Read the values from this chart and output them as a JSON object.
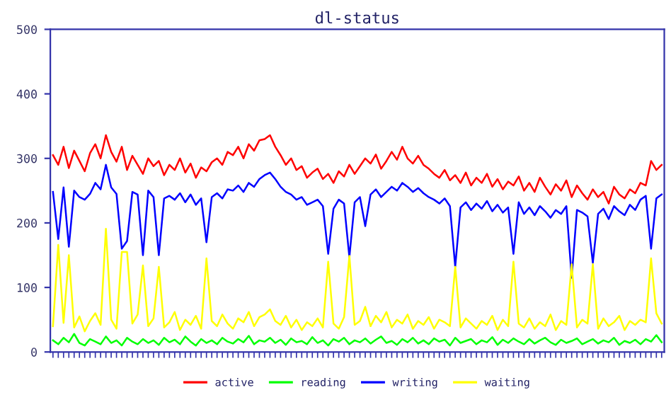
{
  "chart_data": {
    "type": "line",
    "title": "dl-status",
    "categories": [
      null,
      null,
      null,
      null,
      null,
      null,
      null,
      null,
      null,
      null,
      null,
      null,
      null,
      null,
      null,
      null,
      null,
      null,
      null,
      null,
      null,
      null,
      null,
      null,
      null,
      null,
      null,
      null,
      null,
      null,
      null,
      null,
      null,
      null,
      null,
      null,
      null,
      null,
      null,
      null,
      null,
      null,
      null,
      null,
      null,
      null,
      null,
      null,
      null,
      null,
      null,
      null,
      null,
      null,
      null,
      null,
      null,
      null,
      null,
      null,
      null,
      null,
      null,
      null,
      null,
      null,
      null,
      null,
      null,
      null,
      null,
      null,
      null,
      null,
      null,
      null,
      null,
      null,
      null,
      null,
      null,
      null,
      null,
      null,
      null,
      null,
      null,
      null,
      null,
      null,
      null,
      null,
      null,
      null,
      null,
      null,
      null,
      null,
      null,
      null,
      null,
      null,
      null,
      null,
      null,
      null,
      null,
      null,
      null,
      null,
      null,
      null,
      null,
      null,
      null,
      null
    ],
    "series": [
      {
        "name": "active",
        "color": "#ff0000",
        "values": [
          305,
          290,
          318,
          285,
          312,
          296,
          280,
          308,
          322,
          300,
          336,
          310,
          295,
          318,
          282,
          304,
          290,
          276,
          300,
          288,
          296,
          274,
          290,
          282,
          300,
          278,
          292,
          270,
          286,
          280,
          294,
          300,
          290,
          310,
          305,
          318,
          300,
          322,
          312,
          328,
          330,
          336,
          318,
          305,
          290,
          300,
          282,
          288,
          270,
          278,
          284,
          268,
          276,
          262,
          280,
          272,
          290,
          276,
          288,
          300,
          292,
          306,
          284,
          296,
          310,
          298,
          318,
          300,
          292,
          304,
          290,
          284,
          276,
          270,
          282,
          266,
          274,
          262,
          278,
          258,
          270,
          262,
          276,
          256,
          268,
          252,
          264,
          258,
          272,
          250,
          262,
          248,
          270,
          256,
          244,
          260,
          250,
          266,
          240,
          258,
          246,
          236,
          252,
          240,
          248,
          230,
          256,
          244,
          238,
          252,
          246,
          262,
          258,
          296,
          282,
          290
        ]
      },
      {
        "name": "reading",
        "color": "#00ff00",
        "values": [
          18,
          12,
          22,
          15,
          28,
          14,
          10,
          20,
          16,
          12,
          24,
          14,
          18,
          10,
          22,
          16,
          12,
          20,
          14,
          18,
          11,
          22,
          15,
          19,
          12,
          24,
          16,
          10,
          20,
          14,
          18,
          12,
          22,
          16,
          13,
          20,
          15,
          25,
          12,
          18,
          16,
          22,
          14,
          19,
          11,
          21,
          15,
          17,
          12,
          23,
          14,
          18,
          10,
          20,
          16,
          22,
          12,
          18,
          15,
          21,
          13,
          19,
          24,
          14,
          17,
          11,
          20,
          15,
          22,
          13,
          18,
          12,
          21,
          16,
          19,
          10,
          22,
          14,
          17,
          20,
          12,
          18,
          15,
          23,
          11,
          19,
          14,
          21,
          16,
          12,
          20,
          13,
          18,
          22,
          15,
          11,
          19,
          14,
          17,
          21,
          12,
          16,
          20,
          13,
          18,
          15,
          22,
          11,
          17,
          14,
          19,
          12,
          20,
          16,
          26,
          15
        ]
      },
      {
        "name": "writing",
        "color": "#0000ff",
        "values": [
          248,
          175,
          255,
          163,
          250,
          240,
          236,
          245,
          262,
          252,
          290,
          255,
          245,
          160,
          172,
          248,
          244,
          150,
          250,
          240,
          150,
          238,
          242,
          236,
          246,
          232,
          244,
          228,
          238,
          170,
          240,
          246,
          238,
          252,
          250,
          258,
          248,
          262,
          256,
          268,
          274,
          278,
          268,
          256,
          248,
          244,
          236,
          240,
          228,
          232,
          236,
          226,
          152,
          222,
          236,
          230,
          147,
          232,
          240,
          195,
          244,
          252,
          240,
          248,
          256,
          250,
          262,
          256,
          248,
          254,
          246,
          240,
          236,
          230,
          238,
          226,
          132,
          224,
          232,
          220,
          230,
          222,
          234,
          218,
          228,
          216,
          224,
          152,
          232,
          214,
          224,
          212,
          226,
          218,
          208,
          220,
          214,
          226,
          115,
          220,
          216,
          210,
          138,
          214,
          222,
          206,
          226,
          218,
          212,
          228,
          220,
          236,
          242,
          160,
          238,
          244
        ]
      },
      {
        "name": "waiting",
        "color": "#ffff00",
        "values": [
          40,
          166,
          45,
          150,
          38,
          55,
          32,
          48,
          60,
          42,
          191,
          50,
          36,
          155,
          155,
          44,
          58,
          134,
          40,
          52,
          132,
          38,
          46,
          62,
          34,
          50,
          42,
          56,
          36,
          145,
          48,
          40,
          58,
          44,
          36,
          52,
          46,
          62,
          40,
          54,
          58,
          66,
          48,
          42,
          56,
          38,
          50,
          34,
          46,
          40,
          52,
          38,
          140,
          44,
          36,
          54,
          149,
          42,
          48,
          70,
          40,
          56,
          46,
          62,
          38,
          50,
          44,
          58,
          36,
          48,
          42,
          54,
          36,
          50,
          46,
          40,
          132,
          38,
          52,
          44,
          36,
          48,
          42,
          56,
          34,
          50,
          40,
          140,
          44,
          38,
          52,
          36,
          46,
          40,
          58,
          34,
          48,
          42,
          136,
          38,
          50,
          44,
          136,
          36,
          52,
          40,
          46,
          56,
          34,
          48,
          42,
          50,
          46,
          145,
          60,
          44
        ]
      }
    ],
    "ylim": [
      0,
      500
    ],
    "yticks": [
      0,
      100,
      200,
      300,
      400,
      500
    ],
    "tick_labels": "y",
    "legend": "bottom",
    "grid": false,
    "marker": "none",
    "line_style": "solid"
  }
}
